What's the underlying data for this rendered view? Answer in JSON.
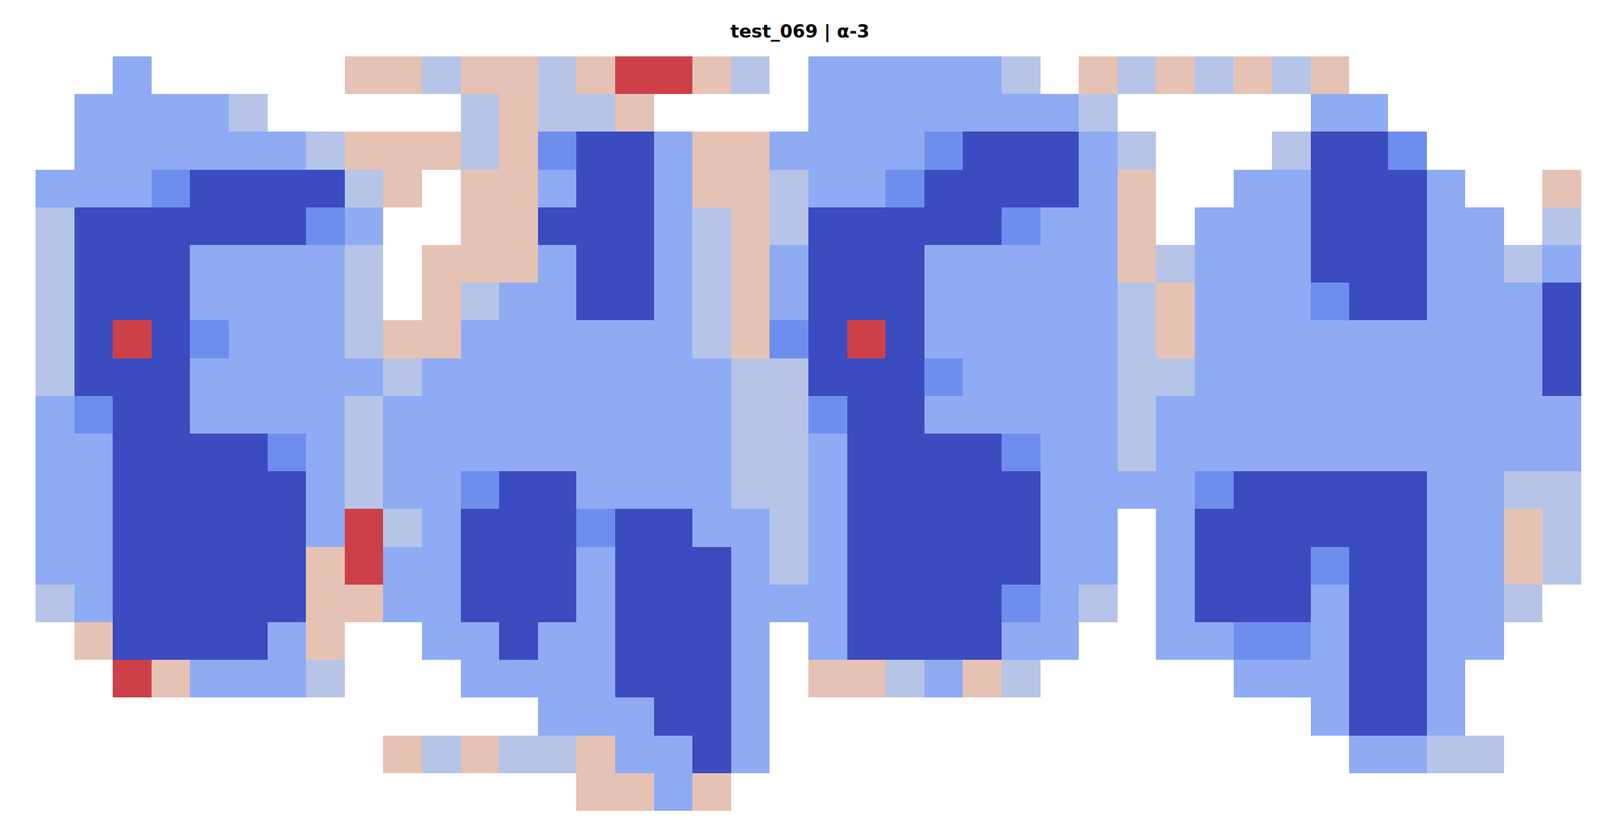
{
  "chart_data": {
    "type": "heatmap",
    "title": "test_069 | α-3",
    "zlim": [
      0,
      10
    ],
    "tick_labels": false,
    "grid": false,
    "cells": [
      [
        null,
        null,
        3,
        null,
        null,
        null,
        null,
        null,
        6,
        6,
        4,
        6,
        6,
        4,
        6,
        9,
        9,
        6,
        4,
        null,
        3,
        3,
        3,
        3,
        3,
        4,
        null,
        6,
        4,
        6,
        4,
        6,
        4,
        6,
        null,
        null,
        null,
        null,
        null,
        null
      ],
      [
        null,
        3,
        3,
        3,
        3,
        4,
        null,
        null,
        null,
        null,
        null,
        4,
        6,
        4,
        4,
        6,
        null,
        null,
        null,
        null,
        3,
        3,
        3,
        3,
        3,
        3,
        3,
        4,
        null,
        null,
        null,
        null,
        null,
        3,
        3,
        null,
        null,
        null,
        null,
        null
      ],
      [
        null,
        3,
        3,
        3,
        3,
        3,
        3,
        4,
        6,
        6,
        6,
        4,
        6,
        2,
        0,
        0,
        3,
        6,
        6,
        3,
        3,
        3,
        3,
        2,
        0,
        0,
        0,
        3,
        4,
        null,
        null,
        null,
        4,
        0,
        0,
        2,
        null,
        null,
        null,
        null
      ],
      [
        3,
        3,
        3,
        2,
        0,
        0,
        0,
        0,
        4,
        6,
        null,
        6,
        6,
        3,
        0,
        0,
        3,
        6,
        6,
        4,
        3,
        3,
        2,
        0,
        0,
        0,
        0,
        3,
        6,
        null,
        null,
        3,
        3,
        0,
        0,
        0,
        3,
        null,
        null,
        6
      ],
      [
        4,
        0,
        0,
        0,
        0,
        0,
        0,
        2,
        3,
        null,
        null,
        6,
        6,
        0,
        0,
        0,
        3,
        4,
        6,
        4,
        0,
        0,
        0,
        0,
        0,
        2,
        3,
        3,
        6,
        null,
        3,
        3,
        3,
        0,
        0,
        0,
        3,
        3,
        null,
        4
      ],
      [
        4,
        0,
        0,
        0,
        3,
        3,
        3,
        3,
        4,
        null,
        6,
        6,
        6,
        3,
        0,
        0,
        3,
        4,
        6,
        3,
        0,
        0,
        0,
        3,
        3,
        3,
        3,
        3,
        6,
        4,
        3,
        3,
        3,
        0,
        0,
        0,
        3,
        3,
        4,
        3
      ],
      [
        4,
        0,
        0,
        0,
        3,
        3,
        3,
        3,
        4,
        null,
        6,
        4,
        3,
        3,
        0,
        0,
        3,
        4,
        6,
        3,
        0,
        0,
        0,
        3,
        3,
        3,
        3,
        3,
        4,
        6,
        3,
        3,
        3,
        2,
        0,
        0,
        3,
        3,
        3,
        0
      ],
      [
        4,
        0,
        9,
        0,
        2,
        3,
        3,
        3,
        4,
        6,
        6,
        3,
        3,
        3,
        3,
        3,
        3,
        4,
        6,
        2,
        0,
        9,
        0,
        3,
        3,
        3,
        3,
        3,
        4,
        6,
        3,
        3,
        3,
        3,
        3,
        3,
        3,
        3,
        3,
        0
      ],
      [
        4,
        0,
        0,
        0,
        3,
        3,
        3,
        3,
        3,
        4,
        3,
        3,
        3,
        3,
        3,
        3,
        3,
        3,
        4,
        4,
        0,
        0,
        0,
        2,
        3,
        3,
        3,
        3,
        4,
        4,
        3,
        3,
        3,
        3,
        3,
        3,
        3,
        3,
        3,
        0
      ],
      [
        3,
        2,
        0,
        0,
        3,
        3,
        3,
        3,
        4,
        3,
        3,
        3,
        3,
        3,
        3,
        3,
        3,
        3,
        4,
        4,
        2,
        0,
        0,
        3,
        3,
        3,
        3,
        3,
        4,
        3,
        3,
        3,
        3,
        3,
        3,
        3,
        3,
        3,
        3,
        3
      ],
      [
        3,
        3,
        0,
        0,
        0,
        0,
        2,
        3,
        4,
        3,
        3,
        3,
        3,
        3,
        3,
        3,
        3,
        3,
        4,
        4,
        3,
        0,
        0,
        0,
        0,
        2,
        3,
        3,
        4,
        3,
        3,
        3,
        3,
        3,
        3,
        3,
        3,
        3,
        3,
        3
      ],
      [
        3,
        3,
        0,
        0,
        0,
        0,
        0,
        3,
        4,
        3,
        3,
        2,
        0,
        0,
        3,
        3,
        3,
        3,
        4,
        4,
        3,
        0,
        0,
        0,
        0,
        0,
        3,
        3,
        3,
        3,
        2,
        0,
        0,
        0,
        0,
        0,
        3,
        3,
        4,
        4
      ],
      [
        3,
        3,
        0,
        0,
        0,
        0,
        0,
        3,
        9,
        4,
        3,
        0,
        0,
        0,
        2,
        0,
        0,
        3,
        3,
        4,
        3,
        0,
        0,
        0,
        0,
        0,
        3,
        3,
        null,
        3,
        0,
        0,
        0,
        0,
        0,
        0,
        3,
        3,
        6,
        4
      ],
      [
        3,
        3,
        0,
        0,
        0,
        0,
        0,
        6,
        9,
        3,
        3,
        0,
        0,
        0,
        3,
        0,
        0,
        0,
        3,
        4,
        3,
        0,
        0,
        0,
        0,
        0,
        3,
        3,
        null,
        3,
        0,
        0,
        0,
        2,
        0,
        0,
        3,
        3,
        6,
        4
      ],
      [
        4,
        3,
        0,
        0,
        0,
        0,
        0,
        6,
        6,
        3,
        3,
        0,
        0,
        0,
        3,
        0,
        0,
        0,
        3,
        3,
        3,
        0,
        0,
        0,
        0,
        2,
        3,
        4,
        null,
        3,
        0,
        0,
        0,
        3,
        0,
        0,
        3,
        3,
        4,
        null
      ],
      [
        null,
        6,
        0,
        0,
        0,
        0,
        3,
        6,
        null,
        null,
        3,
        3,
        0,
        3,
        3,
        0,
        0,
        0,
        3,
        null,
        3,
        0,
        0,
        0,
        0,
        3,
        3,
        null,
        null,
        3,
        3,
        2,
        2,
        3,
        0,
        0,
        3,
        3,
        null,
        null
      ],
      [
        null,
        null,
        9,
        6,
        3,
        3,
        3,
        4,
        null,
        null,
        null,
        3,
        3,
        3,
        3,
        0,
        0,
        0,
        3,
        null,
        6,
        6,
        4,
        3,
        6,
        4,
        null,
        null,
        null,
        null,
        null,
        3,
        3,
        3,
        0,
        0,
        3,
        null,
        null,
        null
      ],
      [
        null,
        null,
        null,
        null,
        null,
        null,
        null,
        null,
        null,
        null,
        null,
        null,
        null,
        3,
        3,
        3,
        0,
        0,
        3,
        null,
        null,
        null,
        null,
        null,
        null,
        null,
        null,
        null,
        null,
        null,
        null,
        null,
        null,
        3,
        0,
        0,
        3,
        null,
        null,
        null
      ],
      [
        null,
        null,
        null,
        null,
        null,
        null,
        null,
        null,
        null,
        6,
        4,
        6,
        4,
        4,
        6,
        3,
        3,
        0,
        3,
        null,
        null,
        null,
        null,
        null,
        null,
        null,
        null,
        null,
        null,
        null,
        null,
        null,
        null,
        null,
        3,
        3,
        4,
        4,
        null,
        null
      ],
      [
        null,
        null,
        null,
        null,
        null,
        null,
        null,
        null,
        null,
        null,
        null,
        null,
        null,
        null,
        6,
        6,
        3,
        6,
        null,
        null,
        null,
        null,
        null,
        null,
        null,
        null,
        null,
        null,
        null,
        null,
        null,
        null,
        null,
        null,
        null,
        null,
        null,
        null,
        null,
        null
      ]
    ]
  }
}
